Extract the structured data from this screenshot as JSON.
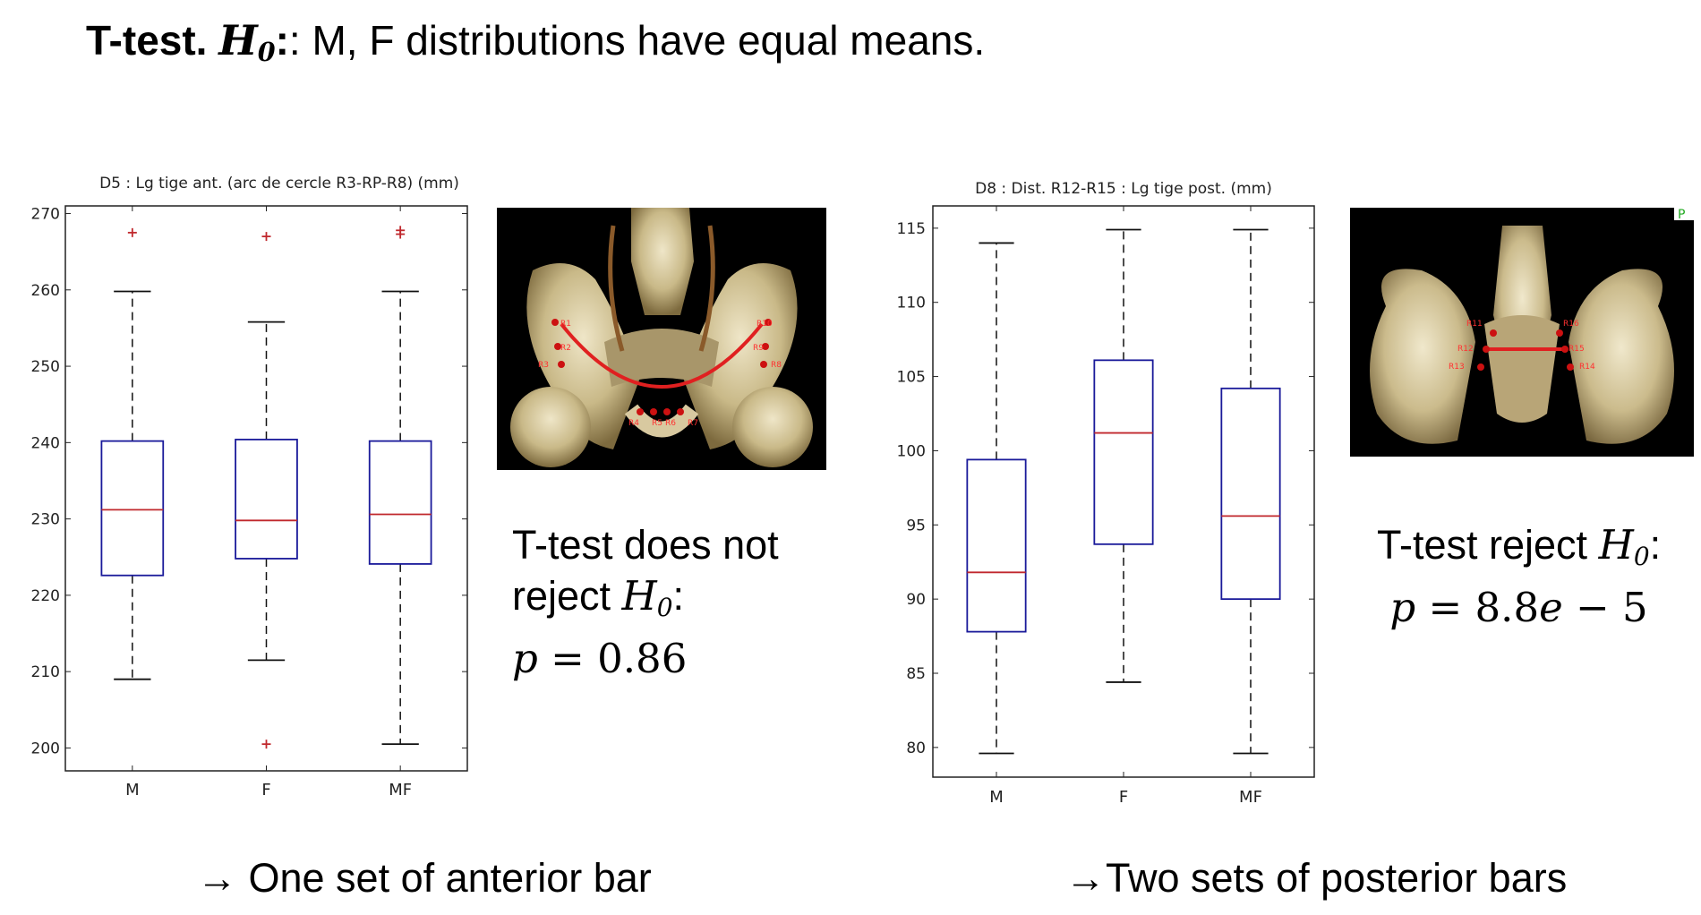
{
  "title": {
    "bold": "T-test.",
    "symbol": "H",
    "sub": "0",
    "rest": ": M, F distributions have equal means."
  },
  "chart_data": [
    {
      "type": "box",
      "title": "D5 : Lg tige ant. (arc de cercle R3-RP-R8) (mm)",
      "categories": [
        "M",
        "F",
        "MF"
      ],
      "ylim": [
        197,
        271
      ],
      "yticks": [
        200,
        210,
        220,
        230,
        240,
        250,
        260,
        270
      ],
      "boxes": [
        {
          "name": "M",
          "whisker_low": 209,
          "q1": 222.6,
          "median": 231.2,
          "q3": 240.2,
          "whisker_high": 259.8,
          "outliers": [
            267.5
          ]
        },
        {
          "name": "F",
          "whisker_low": 211.5,
          "q1": 224.8,
          "median": 229.8,
          "q3": 240.4,
          "whisker_high": 255.8,
          "outliers": [
            267,
            200.5
          ]
        },
        {
          "name": "MF",
          "whisker_low": 200.5,
          "q1": 224.1,
          "median": 230.6,
          "q3": 240.2,
          "whisker_high": 259.8,
          "outliers": [
            267.3,
            267.8
          ]
        }
      ],
      "box_color": "#1a1a9a",
      "median_color": "#c0282d",
      "outlier_color": "#c0282d"
    },
    {
      "type": "box",
      "title": "D8 : Dist. R12-R15 : Lg tige post. (mm)",
      "categories": [
        "M",
        "F",
        "MF"
      ],
      "ylim": [
        78,
        116.5
      ],
      "yticks": [
        80,
        85,
        90,
        95,
        100,
        105,
        110,
        115
      ],
      "boxes": [
        {
          "name": "M",
          "whisker_low": 79.6,
          "q1": 87.8,
          "median": 91.8,
          "q3": 99.4,
          "whisker_high": 114,
          "outliers": []
        },
        {
          "name": "F",
          "whisker_low": 84.4,
          "q1": 93.7,
          "median": 101.2,
          "q3": 106.1,
          "whisker_high": 114.9,
          "outliers": []
        },
        {
          "name": "MF",
          "whisker_low": 79.6,
          "q1": 90,
          "median": 95.6,
          "q3": 104.2,
          "whisker_high": 114.9,
          "outliers": []
        }
      ],
      "box_color": "#1a1a9a",
      "median_color": "#c0282d",
      "outlier_color": "#c0282d"
    }
  ],
  "images": {
    "anterior": {
      "labels": [
        "R1",
        "R2",
        "R3",
        "R4",
        "R5",
        "R6",
        "R7",
        "R8",
        "R9",
        "R10"
      ]
    },
    "posterior": {
      "labels": [
        "R11",
        "R12",
        "R13",
        "R14",
        "R15",
        "R16"
      ],
      "corner_letter": "P"
    }
  },
  "results": {
    "left": {
      "line1": "T-test does not",
      "line2": "reject ",
      "symbol": "H",
      "sub": "0",
      "colon": ":",
      "p_sym": "p",
      "p_eq": " = 0.86"
    },
    "right": {
      "line1": "T-test reject ",
      "symbol": "H",
      "sub": "0",
      "colon": ":",
      "p_sym": "p",
      "p_eq": " = 8.8",
      "p_e": "e",
      "p_tail": " − 5"
    }
  },
  "conclusions": {
    "left": "→ One set of anterior bar",
    "right": "→Two sets of posterior bars"
  }
}
